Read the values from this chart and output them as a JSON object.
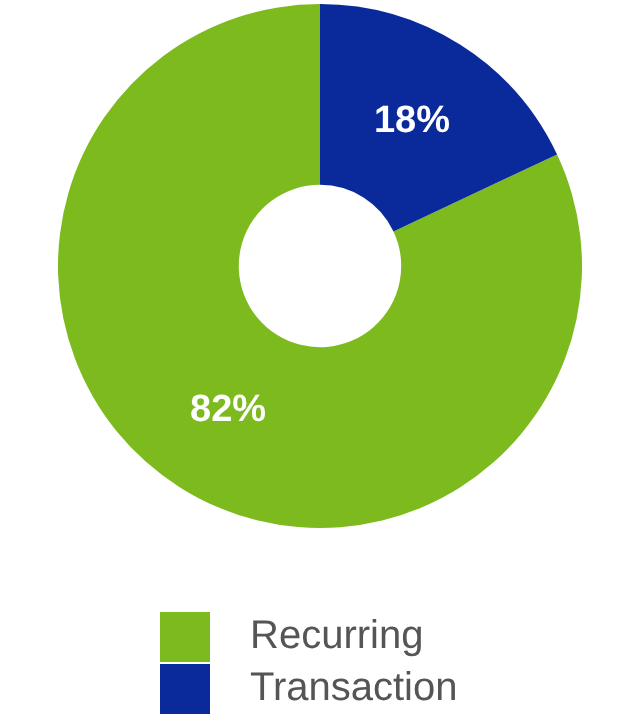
{
  "chart_data": {
    "type": "donut",
    "categories": [
      "Recurring",
      "Transaction"
    ],
    "values": [
      82,
      18
    ],
    "colors": [
      "#7dba1e",
      "#0a2a9c"
    ],
    "value_labels": [
      "82%",
      "18%"
    ],
    "legend": "bottom"
  }
}
